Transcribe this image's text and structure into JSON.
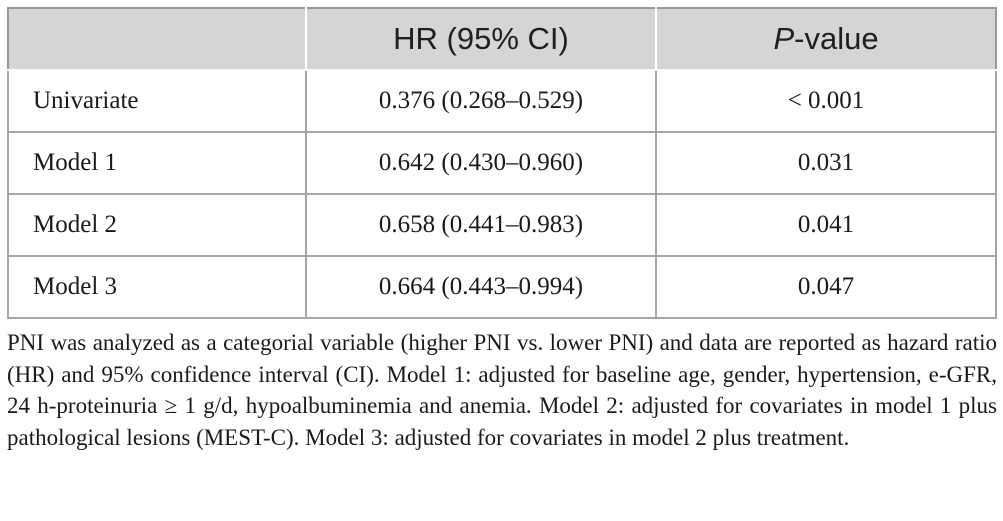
{
  "table": {
    "header": {
      "col1": "",
      "col2": "HR (95% CI)",
      "col3_italic": "P",
      "col3_rest": "-value"
    },
    "rows": [
      {
        "label": "Univariate",
        "hr": "0.376 (0.268–0.529)",
        "p": "< 0.001"
      },
      {
        "label": "Model 1",
        "hr": "0.642 (0.430–0.960)",
        "p": "0.031"
      },
      {
        "label": "Model 2",
        "hr": "0.658 (0.441–0.983)",
        "p": "0.041"
      },
      {
        "label": "Model 3",
        "hr": "0.664 (0.443–0.994)",
        "p": "0.047"
      }
    ]
  },
  "footnote": "PNI was analyzed as a categorial variable (higher PNI vs. lower PNI) and data are reported as hazard ratio (HR) and 95% confidence interval (CI). Model 1: adjusted for baseline age, gender, hypertension, e-GFR, 24 h-proteinuria ≥ 1 g/d, hypoalbuminemia and anemia. Model 2: adjusted for covariates in model 1 plus pathological lesions (MEST-C). Model 3: adjusted for covariates in model 2 plus treatment."
}
